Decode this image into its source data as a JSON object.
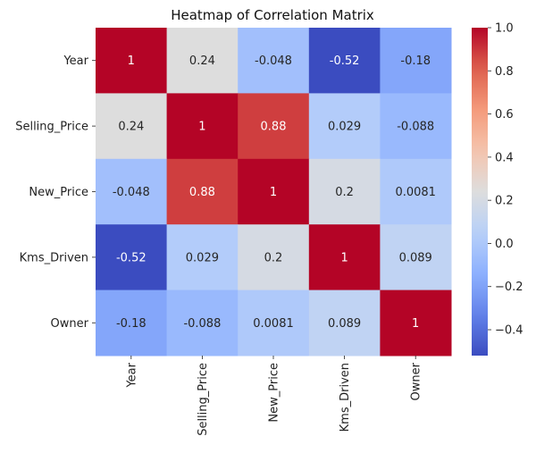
{
  "chart_data": {
    "type": "heatmap",
    "title": "Heatmap of Correlation Matrix",
    "xlabel": "",
    "ylabel": "",
    "rows": [
      "Year",
      "Selling_Price",
      "New_Price",
      "Kms_Driven",
      "Owner"
    ],
    "columns": [
      "Year",
      "Selling_Price",
      "New_Price",
      "Kms_Driven",
      "Owner"
    ],
    "values": [
      [
        1,
        0.24,
        -0.048,
        -0.52,
        -0.18
      ],
      [
        0.24,
        1,
        0.88,
        0.029,
        -0.088
      ],
      [
        -0.048,
        0.88,
        1,
        0.2,
        0.0081
      ],
      [
        -0.52,
        0.029,
        0.2,
        1,
        0.089
      ],
      [
        -0.18,
        -0.088,
        0.0081,
        0.089,
        1
      ]
    ],
    "value_labels": [
      [
        "1",
        "0.24",
        "-0.048",
        "-0.52",
        "-0.18"
      ],
      [
        "0.24",
        "1",
        "0.88",
        "0.029",
        "-0.088"
      ],
      [
        "-0.048",
        "0.88",
        "1",
        "0.2",
        "0.0081"
      ],
      [
        "-0.52",
        "0.029",
        "0.2",
        "1",
        "0.089"
      ],
      [
        "-0.18",
        "-0.088",
        "0.0081",
        "0.089",
        "1"
      ]
    ],
    "colormap": "coolwarm",
    "colorbar": {
      "range": [
        -0.52,
        1.0
      ],
      "ticks": [
        1.0,
        0.8,
        0.6,
        0.4,
        0.2,
        0.0,
        -0.2,
        -0.4
      ],
      "tick_labels": [
        "1.0",
        "0.8",
        "0.6",
        "0.4",
        "0.2",
        "0.0",
        "−0.2",
        "−0.4"
      ]
    }
  }
}
